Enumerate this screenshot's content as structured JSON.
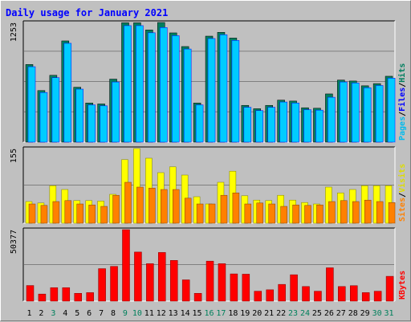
{
  "title": "Daily usage for January 2021",
  "colors": {
    "title": "#0000ff",
    "hits_front": "#00ccff",
    "hits_back": "#00805c",
    "files_front": "#00ccff",
    "files_back": "#0000ff",
    "pages_front": "#00ccff",
    "pages_back": "#00ffff",
    "visits_front": "#ffff00",
    "sites_front": "#ff8000",
    "kbytes_front": "#ff0000",
    "weekend_label": "#00805c",
    "weekday_label": "#000000"
  },
  "chart_data": [
    {
      "type": "bar",
      "panel": "hits-files-pages",
      "max_label": "1253",
      "ylim": [
        0,
        1253
      ],
      "legend": [
        "Pages",
        "/",
        "Files",
        "/",
        "Hits"
      ],
      "categories": [
        "1",
        "2",
        "3",
        "4",
        "5",
        "6",
        "7",
        "8",
        "9",
        "10",
        "11",
        "12",
        "13",
        "14",
        "15",
        "16",
        "17",
        "18",
        "19",
        "20",
        "21",
        "22",
        "23",
        "24",
        "25",
        "26",
        "27",
        "28",
        "29",
        "30",
        "31"
      ],
      "series": [
        {
          "name": "Hits",
          "values": [
            813,
            540,
            700,
            1060,
            575,
            410,
            400,
            660,
            1250,
            1250,
            1175,
            1253,
            1144,
            1001,
            410,
            1110,
            1150,
            1090,
            385,
            350,
            385,
            440,
            430,
            360,
            355,
            505,
            650,
            640,
            590,
            613,
            690
          ]
        },
        {
          "name": "Files",
          "values": [
            790,
            520,
            675,
            1035,
            555,
            390,
            380,
            630,
            1220,
            1220,
            1145,
            1200,
            1115,
            975,
            390,
            1085,
            1125,
            1065,
            365,
            330,
            365,
            420,
            410,
            340,
            335,
            470,
            630,
            620,
            570,
            593,
            670
          ]
        },
        {
          "name": "Pages",
          "values": [
            0,
            0,
            0,
            0,
            0,
            0,
            0,
            0,
            0,
            0,
            0,
            0,
            0,
            0,
            0,
            0,
            0,
            0,
            0,
            0,
            0,
            0,
            0,
            0,
            0,
            0,
            0,
            0,
            0,
            0,
            0
          ]
        }
      ]
    },
    {
      "type": "bar",
      "panel": "visits-sites",
      "max_label": "155",
      "ylim": [
        0,
        155
      ],
      "legend": [
        "Sites",
        "/",
        "Visits"
      ],
      "categories": [
        "1",
        "2",
        "3",
        "4",
        "5",
        "6",
        "7",
        "8",
        "9",
        "10",
        "11",
        "12",
        "13",
        "14",
        "15",
        "16",
        "17",
        "18",
        "19",
        "20",
        "21",
        "22",
        "23",
        "24",
        "25",
        "26",
        "27",
        "28",
        "29",
        "30",
        "31"
      ],
      "series": [
        {
          "name": "Visits",
          "values": [
            45,
            42,
            78,
            70,
            47,
            47,
            46,
            60,
            132,
            155,
            135,
            105,
            117,
            100,
            55,
            40,
            85,
            108,
            57,
            48,
            47,
            58,
            48,
            43,
            40,
            75,
            63,
            70,
            78,
            78,
            78
          ]
        },
        {
          "name": "Sites",
          "values": [
            40,
            37,
            45,
            47,
            40,
            38,
            35,
            58,
            85,
            75,
            73,
            70,
            70,
            52,
            40,
            40,
            58,
            63,
            40,
            42,
            40,
            35,
            38,
            37,
            38,
            45,
            47,
            45,
            48,
            45,
            43
          ]
        }
      ]
    },
    {
      "type": "bar",
      "panel": "kbytes",
      "max_label": "50377",
      "ylim": [
        0,
        50377
      ],
      "legend": [
        "KBytes"
      ],
      "categories": [
        "1",
        "2",
        "3",
        "4",
        "5",
        "6",
        "7",
        "8",
        "9",
        "10",
        "11",
        "12",
        "13",
        "14",
        "15",
        "16",
        "17",
        "18",
        "19",
        "20",
        "21",
        "22",
        "23",
        "24",
        "25",
        "26",
        "27",
        "28",
        "29",
        "30",
        "31"
      ],
      "series": [
        {
          "name": "KBytes",
          "values": [
            11000,
            5000,
            9500,
            9500,
            5500,
            6000,
            22900,
            24500,
            50377,
            34600,
            26400,
            34300,
            28700,
            15000,
            5500,
            28200,
            26400,
            19200,
            19000,
            7000,
            8000,
            11800,
            18600,
            10300,
            7000,
            23500,
            10300,
            10900,
            6000,
            7000,
            17500
          ]
        }
      ]
    }
  ],
  "weekend_days": [
    3,
    9,
    10,
    16,
    17,
    23,
    24,
    30,
    31
  ]
}
